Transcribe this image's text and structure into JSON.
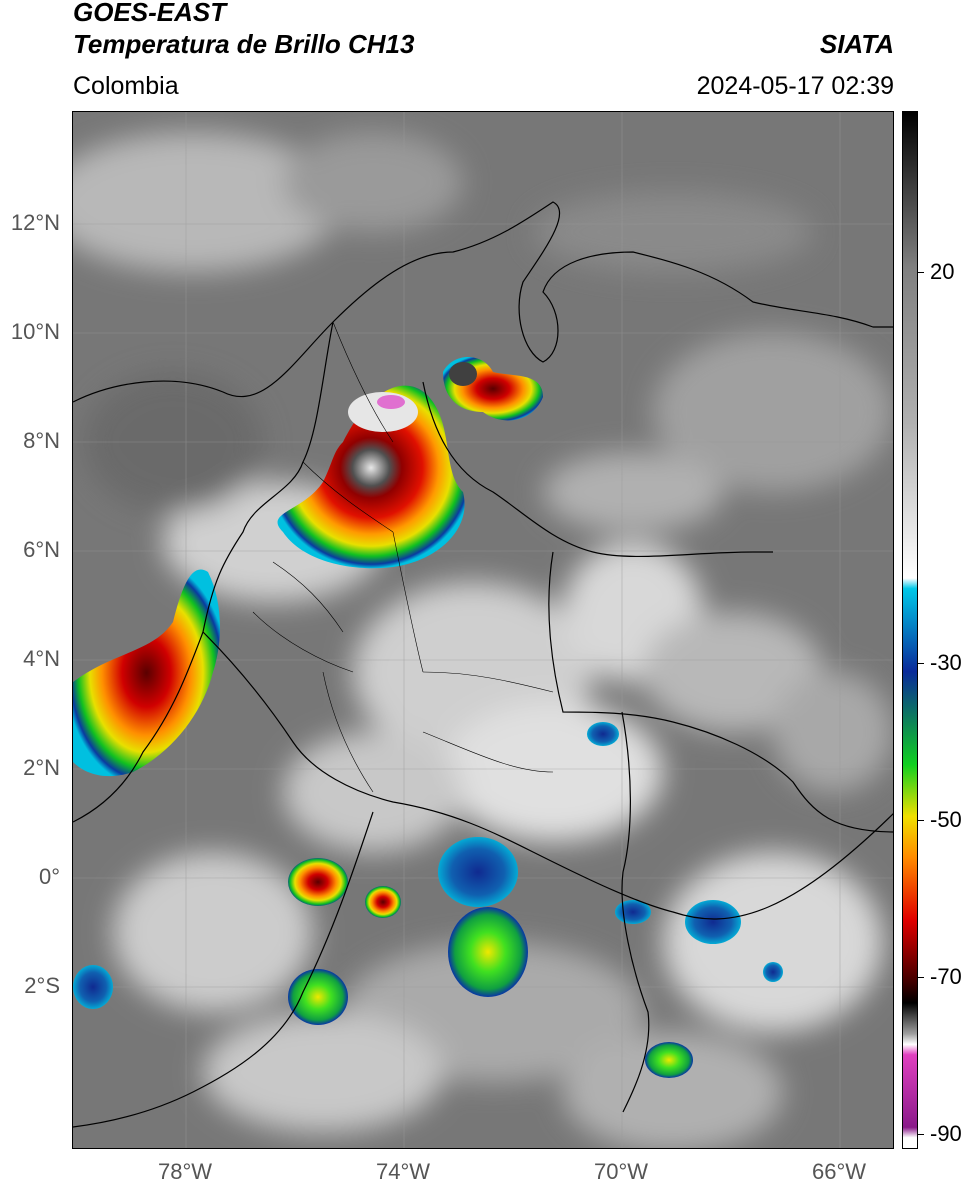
{
  "header": {
    "title_line1": "GOES-EAST",
    "title_line2": "Temperatura de Brillo CH13",
    "brand": "SIATA",
    "region": "Colombia",
    "datetime": "2024-05-17 02:39"
  },
  "map": {
    "latitude_labels": [
      "12°N",
      "10°N",
      "8°N",
      "6°N",
      "4°N",
      "2°N",
      "0°",
      "2°S"
    ],
    "longitude_labels": [
      "78°W",
      "74°W",
      "70°W",
      "66°W"
    ]
  },
  "colorbar": {
    "labels": [
      "20",
      "-30",
      "-50",
      "-70",
      "-90"
    ],
    "colors": {
      "warm_top": "#000000",
      "gray": "#808080",
      "white": "#ffffff",
      "cyan": "#00c8e8",
      "blue": "#0a2a9a",
      "green": "#10d020",
      "yellow": "#f0e000",
      "orange": "#ff8a00",
      "red": "#e00000",
      "dark_red": "#400000",
      "magenta": "#e040c0",
      "purple": "#8a1a8a"
    }
  }
}
